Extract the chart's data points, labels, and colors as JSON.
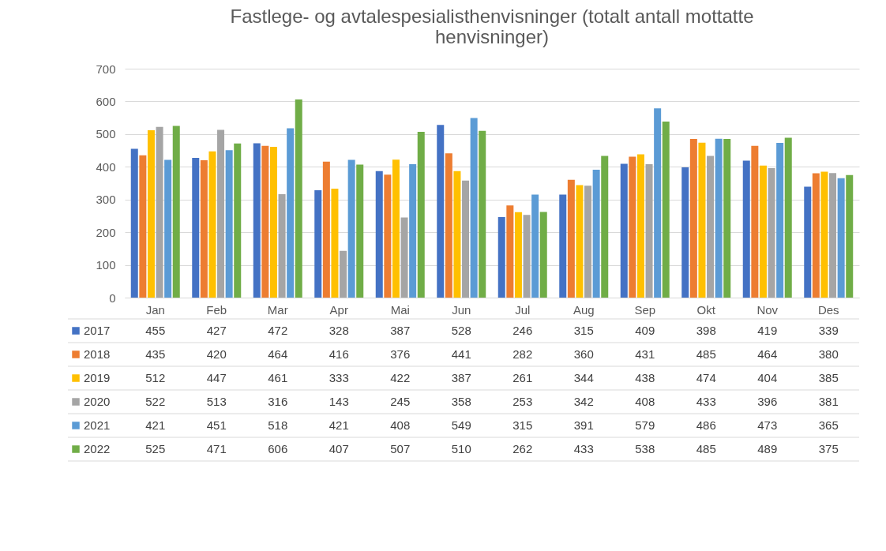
{
  "chart_data": {
    "type": "bar",
    "title": "Fastlege- og avtalespesialisthenvisninger (totalt antall mottatte henvisninger)",
    "categories": [
      "Jan",
      "Feb",
      "Mar",
      "Apr",
      "Mai",
      "Jun",
      "Jul",
      "Aug",
      "Sep",
      "Okt",
      "Nov",
      "Des"
    ],
    "series": [
      {
        "name": "2017",
        "color": "#4472c4",
        "values": [
          455,
          427,
          472,
          328,
          387,
          528,
          246,
          315,
          409,
          398,
          419,
          339
        ]
      },
      {
        "name": "2018",
        "color": "#ed7d31",
        "values": [
          435,
          420,
          464,
          416,
          376,
          441,
          282,
          360,
          431,
          485,
          464,
          380
        ]
      },
      {
        "name": "2019",
        "color": "#ffc000",
        "values": [
          512,
          447,
          461,
          333,
          422,
          387,
          261,
          344,
          438,
          474,
          404,
          385
        ]
      },
      {
        "name": "2020",
        "color": "#a5a5a5",
        "values": [
          522,
          513,
          316,
          143,
          245,
          358,
          253,
          342,
          408,
          433,
          396,
          381
        ]
      },
      {
        "name": "2021",
        "color": "#5b9bd5",
        "values": [
          421,
          451,
          518,
          421,
          408,
          549,
          315,
          391,
          579,
          486,
          473,
          365
        ]
      },
      {
        "name": "2022",
        "color": "#70ad47",
        "values": [
          525,
          471,
          606,
          407,
          507,
          510,
          262,
          433,
          538,
          485,
          489,
          375
        ]
      }
    ],
    "ylim": [
      0,
      700
    ],
    "yticks": [
      0,
      100,
      200,
      300,
      400,
      500,
      600,
      700
    ],
    "grid": "y",
    "legend": "bottom",
    "data_labels": true
  }
}
